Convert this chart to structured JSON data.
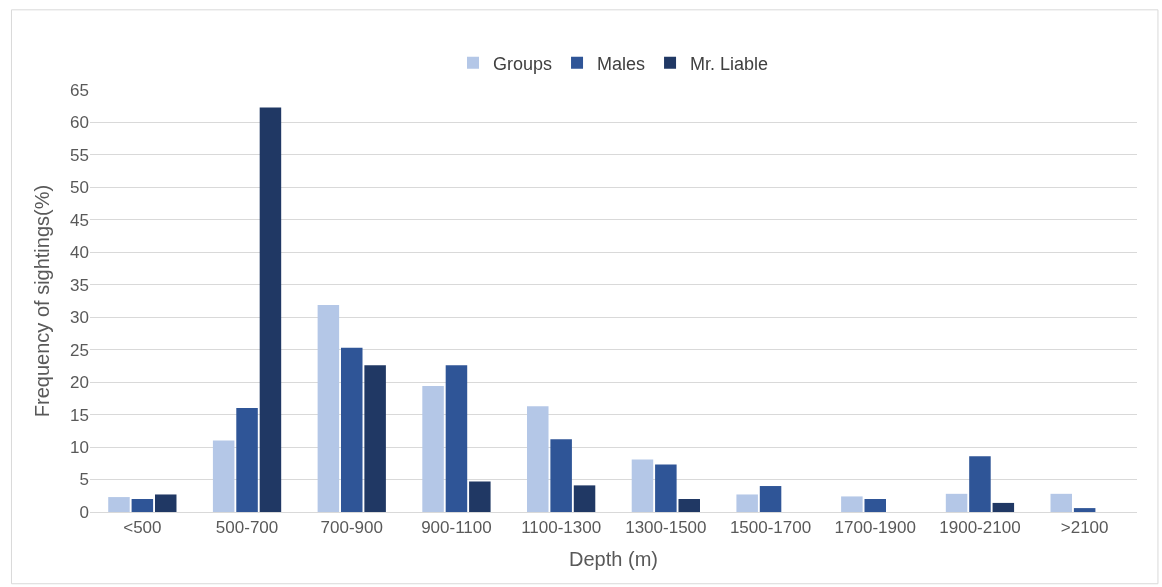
{
  "chart_data": {
    "type": "bar",
    "xlabel": "Depth (m)",
    "ylabel": "Frequency of sightings(%)",
    "categories": [
      "<500",
      "500-700",
      "700-900",
      "900-1100",
      "1100-1300",
      "1300-1500",
      "1500-1700",
      "1700-1900",
      "1900-2100",
      ">2100"
    ],
    "series": [
      {
        "name": "Groups",
        "color": "#b4c7e7",
        "values": [
          2.3,
          11.0,
          31.9,
          19.4,
          16.3,
          8.1,
          2.7,
          2.4,
          2.8,
          2.8
        ]
      },
      {
        "name": "Males",
        "color": "#2f5597",
        "values": [
          2.0,
          16.0,
          25.3,
          22.6,
          11.2,
          7.3,
          4.0,
          2.0,
          8.6,
          0.6
        ]
      },
      {
        "name": "Mr. Liable",
        "color": "#203864",
        "values": [
          2.7,
          62.3,
          22.6,
          4.7,
          4.1,
          2.0,
          0,
          0,
          1.4,
          0
        ]
      }
    ],
    "ylim": [
      0,
      65
    ],
    "yticks": [
      0,
      5,
      10,
      15,
      20,
      25,
      30,
      35,
      40,
      45,
      50,
      55,
      60,
      65
    ],
    "grid": "y",
    "legend": "top"
  }
}
